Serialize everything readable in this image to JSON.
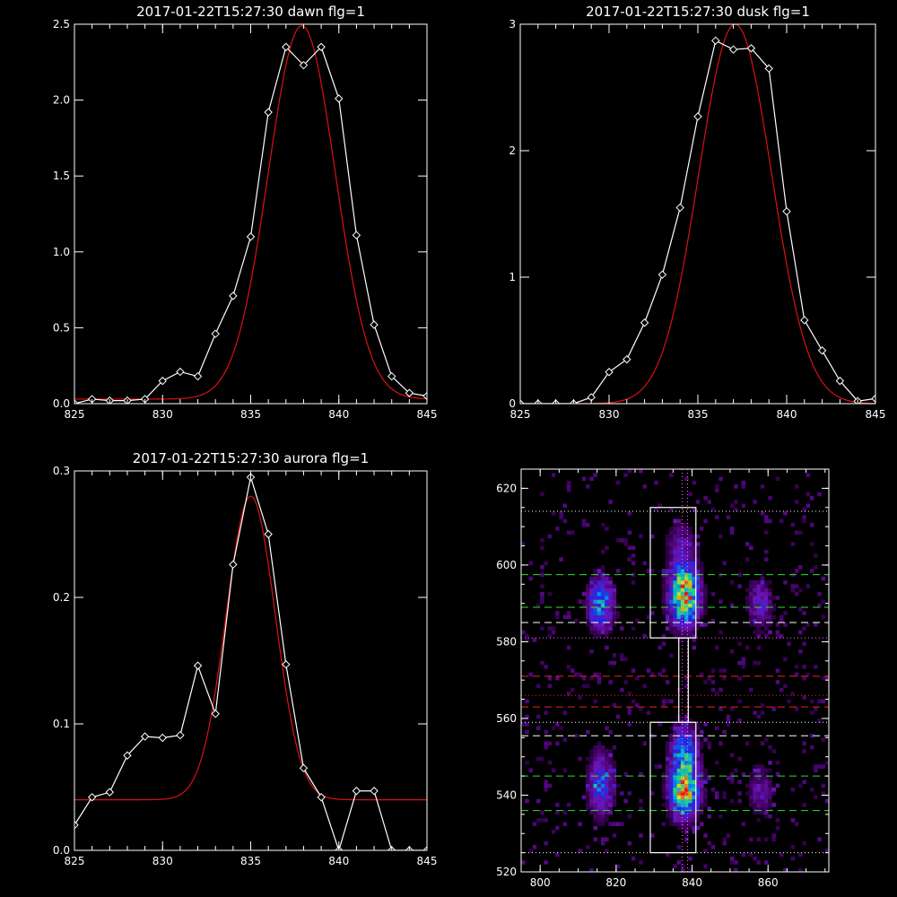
{
  "colors": {
    "background": "#000000",
    "axes": "#ffffff",
    "data_line": "#ffffff",
    "fit_line": "#dd1111",
    "green_guide": "#33dd33",
    "red_guide": "#ee2222",
    "white_guide": "#ffffff",
    "dotted_guide": "#ff66ff"
  },
  "chart_data": [
    {
      "type": "line",
      "title": "2017-01-22T15:27:30 dawn flg=1",
      "xlim": [
        825,
        845
      ],
      "ylim": [
        0,
        2.5
      ],
      "xticks": [
        "825",
        "830",
        "835",
        "840",
        "845"
      ],
      "yticks": [
        "0.0",
        "0.5",
        "1.0",
        "1.5",
        "2.0",
        "2.5"
      ],
      "series": [
        {
          "style": "white-line-diamonds",
          "x": [
            825,
            826,
            827,
            828,
            829,
            830,
            831,
            832,
            833,
            834,
            835,
            836,
            837,
            838,
            839,
            840,
            841,
            842,
            843,
            844,
            845
          ],
          "y": [
            0.0,
            0.03,
            0.02,
            0.02,
            0.03,
            0.15,
            0.21,
            0.18,
            0.46,
            0.71,
            1.1,
            1.92,
            2.35,
            2.23,
            2.35,
            2.01,
            1.11,
            0.52,
            0.18,
            0.07,
            0.05
          ]
        },
        {
          "style": "red-gaussian-fit",
          "center": 837.9,
          "sigma": 1.9,
          "amplitude": 2.46,
          "baseline": 0.03
        }
      ]
    },
    {
      "type": "line",
      "title": "2017-01-22T15:27:30 dusk flg=1",
      "xlim": [
        825,
        845
      ],
      "ylim": [
        0,
        3
      ],
      "xticks": [
        "825",
        "830",
        "835",
        "840",
        "845"
      ],
      "yticks": [
        "0",
        "1",
        "2",
        "3"
      ],
      "series": [
        {
          "style": "white-line-diamonds",
          "x": [
            825,
            826,
            827,
            828,
            829,
            830,
            831,
            832,
            833,
            834,
            835,
            836,
            837,
            838,
            839,
            840,
            841,
            842,
            843,
            844,
            845
          ],
          "y": [
            0.0,
            0.0,
            0.0,
            0.0,
            0.05,
            0.25,
            0.35,
            0.64,
            1.02,
            1.55,
            2.27,
            2.87,
            2.8,
            2.81,
            2.65,
            1.52,
            0.66,
            0.42,
            0.18,
            0.02,
            0.04
          ]
        },
        {
          "style": "red-gaussian-fit",
          "center": 837.1,
          "sigma": 2.05,
          "amplitude": 3.0,
          "baseline": 0.0
        }
      ]
    },
    {
      "type": "line",
      "title": "2017-01-22T15:27:30 aurora flg=1",
      "xlim": [
        825,
        845
      ],
      "ylim": [
        0,
        0.3
      ],
      "xticks": [
        "825",
        "830",
        "835",
        "840",
        "845"
      ],
      "yticks": [
        "0.0",
        "0.1",
        "0.2",
        "0.3"
      ],
      "series": [
        {
          "style": "white-line-diamonds",
          "x": [
            825,
            826,
            827,
            828,
            829,
            830,
            831,
            832,
            833,
            834,
            835,
            836,
            837,
            838,
            839,
            840,
            841,
            842,
            843,
            844,
            845
          ],
          "y": [
            0.02,
            0.042,
            0.046,
            0.075,
            0.09,
            0.089,
            0.091,
            0.146,
            0.108,
            0.226,
            0.295,
            0.25,
            0.147,
            0.065,
            0.042,
            0.0,
            0.047,
            0.047,
            0.0,
            0.0,
            0.0
          ]
        },
        {
          "style": "red-gaussian-fit",
          "center": 835.0,
          "sigma": 1.4,
          "amplitude": 0.24,
          "baseline": 0.04
        }
      ]
    },
    {
      "type": "heatmap",
      "title": "",
      "xlim": [
        795,
        876
      ],
      "ylim": [
        520,
        625
      ],
      "xticks": [
        "800",
        "820",
        "840",
        "860"
      ],
      "yticks": [
        "520",
        "540",
        "560",
        "580",
        "600",
        "620"
      ],
      "blobs": [
        {
          "x": 838,
          "y": 592,
          "sx": 2.8,
          "sy": 5.5,
          "amp": 1.0
        },
        {
          "x": 838,
          "y": 541,
          "sx": 2.8,
          "sy": 5.0,
          "amp": 0.9
        },
        {
          "x": 838,
          "y": 552,
          "sx": 2.5,
          "sy": 5.0,
          "amp": 0.55
        },
        {
          "x": 837,
          "y": 605,
          "sx": 2.5,
          "sy": 4.5,
          "amp": 0.3
        },
        {
          "x": 816,
          "y": 590,
          "sx": 2.5,
          "sy": 5.0,
          "amp": 0.6
        },
        {
          "x": 816,
          "y": 543,
          "sx": 2.5,
          "sy": 6.0,
          "amp": 0.5
        },
        {
          "x": 858,
          "y": 590,
          "sx": 2.5,
          "sy": 5.0,
          "amp": 0.35
        },
        {
          "x": 858,
          "y": 541,
          "sx": 2.5,
          "sy": 5.0,
          "amp": 0.28
        }
      ],
      "boxes": [
        {
          "x0": 829,
          "x1": 841,
          "y0": 581,
          "y1": 615
        },
        {
          "x0": 829,
          "x1": 841,
          "y0": 525,
          "y1": 559
        },
        {
          "x0": 836.5,
          "x1": 839,
          "y0": 559,
          "y1": 581
        }
      ],
      "vertical_dotted": [
        837.4,
        838.8
      ],
      "horizontal_guides": [
        {
          "y": 614,
          "style": "dotted",
          "color": "white"
        },
        {
          "y": 597.5,
          "style": "dashed",
          "color": "green"
        },
        {
          "y": 589,
          "style": "dashed",
          "color": "green"
        },
        {
          "y": 585,
          "style": "dashed",
          "color": "white"
        },
        {
          "y": 581,
          "style": "dotted",
          "color": "magenta"
        },
        {
          "y": 571,
          "style": "dashed",
          "color": "red"
        },
        {
          "y": 566,
          "style": "dotted",
          "color": "red"
        },
        {
          "y": 563,
          "style": "dashed",
          "color": "red"
        },
        {
          "y": 559,
          "style": "dotted",
          "color": "white"
        },
        {
          "y": 555.5,
          "style": "dashed",
          "color": "white"
        },
        {
          "y": 545,
          "style": "dashed",
          "color": "green"
        },
        {
          "y": 536,
          "style": "dashed",
          "color": "green"
        },
        {
          "y": 525,
          "style": "dotted",
          "color": "white"
        }
      ]
    }
  ]
}
